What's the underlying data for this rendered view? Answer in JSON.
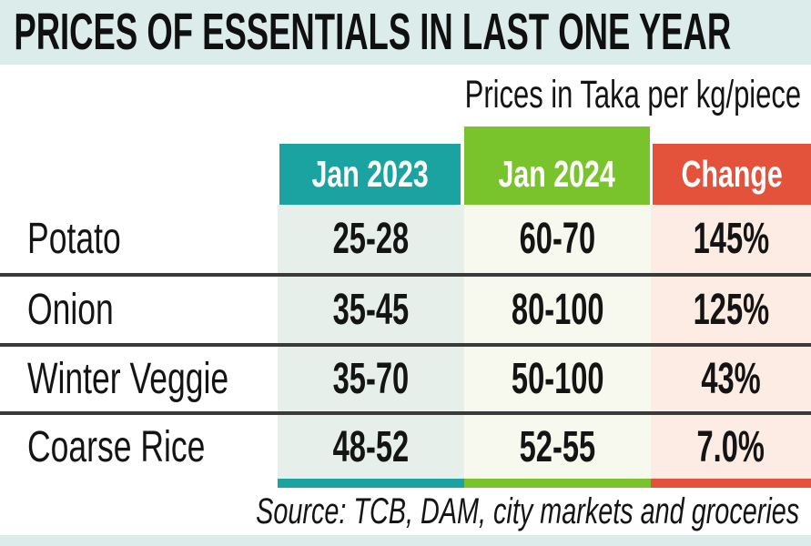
{
  "chart_data": {
    "type": "table",
    "title": "PRICES OF ESSENTIALS IN LAST ONE YEAR",
    "subtitle": "Prices in Taka per kg/piece",
    "columns": [
      "Jan 2023",
      "Jan 2024",
      "Change"
    ],
    "row_labels": [
      "Potato",
      "Onion",
      "Winter Veggie",
      "Coarse Rice"
    ],
    "rows": [
      [
        "25-28",
        "60-70",
        "145%"
      ],
      [
        "35-45",
        "80-100",
        "125%"
      ],
      [
        "35-70",
        "50-100",
        "43%"
      ],
      [
        "48-52",
        "52-55",
        "7.0%"
      ]
    ],
    "source": "Source: TCB, DAM, city markets and groceries",
    "layout_hints": {
      "header_colors": [
        "#1aa3a0",
        "#79c32c",
        "#e5523b"
      ],
      "column_tints": [
        "#e6efe9",
        "#f8f9ee",
        "#fcece3"
      ],
      "banner_color": "#dcecea",
      "divider_color": "#3a3a3a",
      "text_color": "#141414"
    }
  }
}
